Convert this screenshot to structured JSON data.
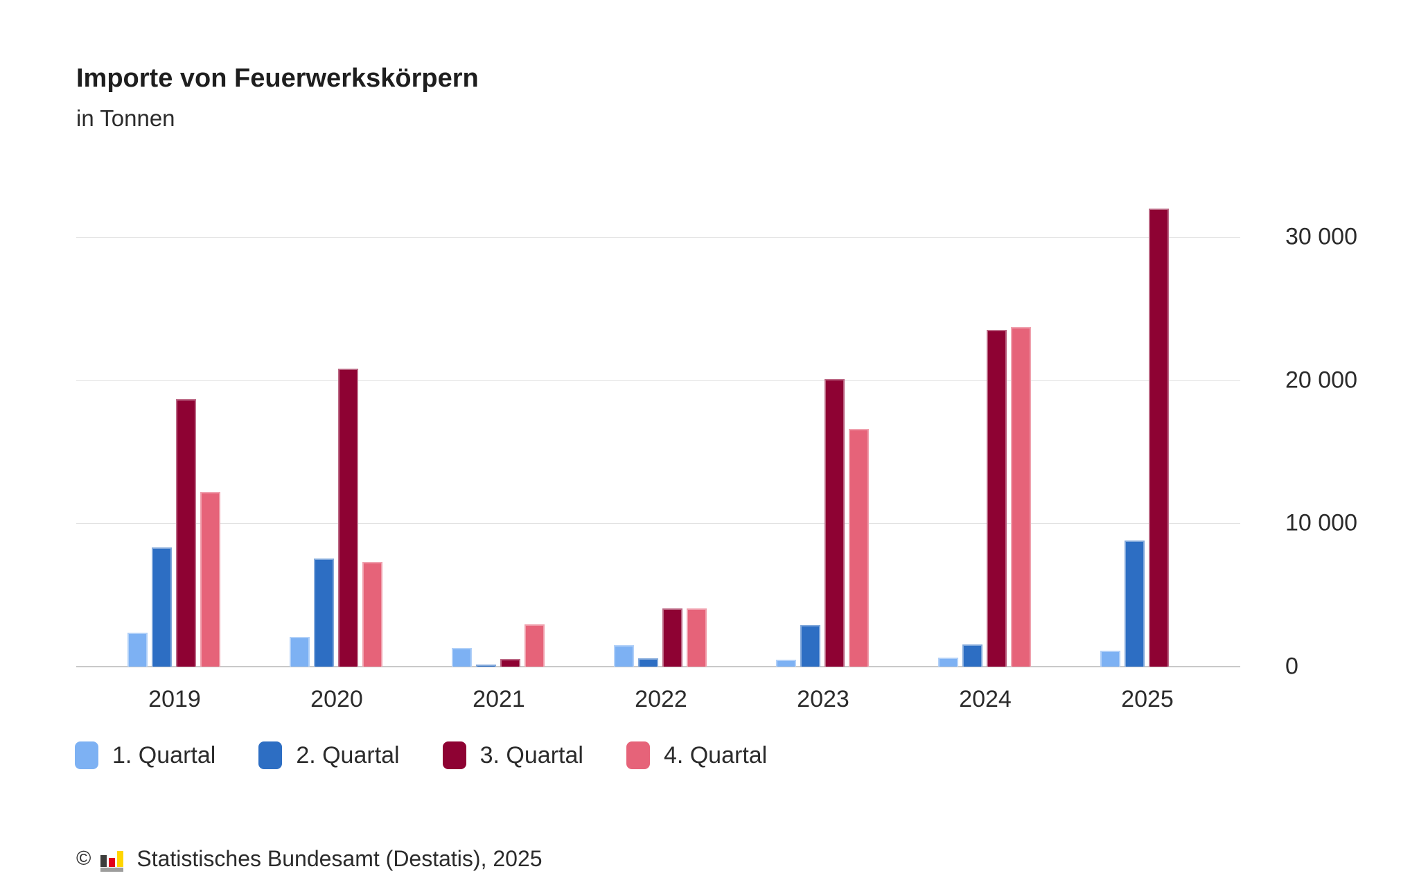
{
  "header": {
    "title": "Importe von Feuerwerkskörpern",
    "subtitle": "in Tonnen"
  },
  "chart_data": {
    "type": "bar",
    "title": "Importe von Feuerwerkskörpern",
    "subtitle": "in Tonnen",
    "unit": "Tonnen",
    "categories": [
      "2019",
      "2020",
      "2021",
      "2022",
      "2023",
      "2024",
      "2025"
    ],
    "series": [
      {
        "name": "1. Quartal",
        "color": "#7db1f3",
        "values": [
          2350,
          2100,
          1300,
          1500,
          500,
          650,
          1100
        ]
      },
      {
        "name": "2. Quartal",
        "color": "#2d6ec3",
        "values": [
          8300,
          7550,
          150,
          600,
          2900,
          1550,
          8800
        ]
      },
      {
        "name": "3. Quartal",
        "color": "#8e0233",
        "values": [
          18700,
          20800,
          530,
          4050,
          20100,
          23500,
          32000
        ]
      },
      {
        "name": "4. Quartal",
        "color": "#e66379",
        "values": [
          12200,
          7300,
          2930,
          4050,
          16600,
          23700,
          null
        ]
      }
    ],
    "yticks": [
      {
        "value": 0,
        "label": "0"
      },
      {
        "value": 10000,
        "label": "10 000"
      },
      {
        "value": 20000,
        "label": "20 000"
      },
      {
        "value": 30000,
        "label": "30 000"
      }
    ],
    "ylim": [
      0,
      33000
    ],
    "grid": true,
    "axis_labels_side": "right",
    "legend_position": "bottom"
  },
  "footer": {
    "copyright": "©",
    "source": "Statistisches Bundesamt (Destatis), 2025"
  }
}
